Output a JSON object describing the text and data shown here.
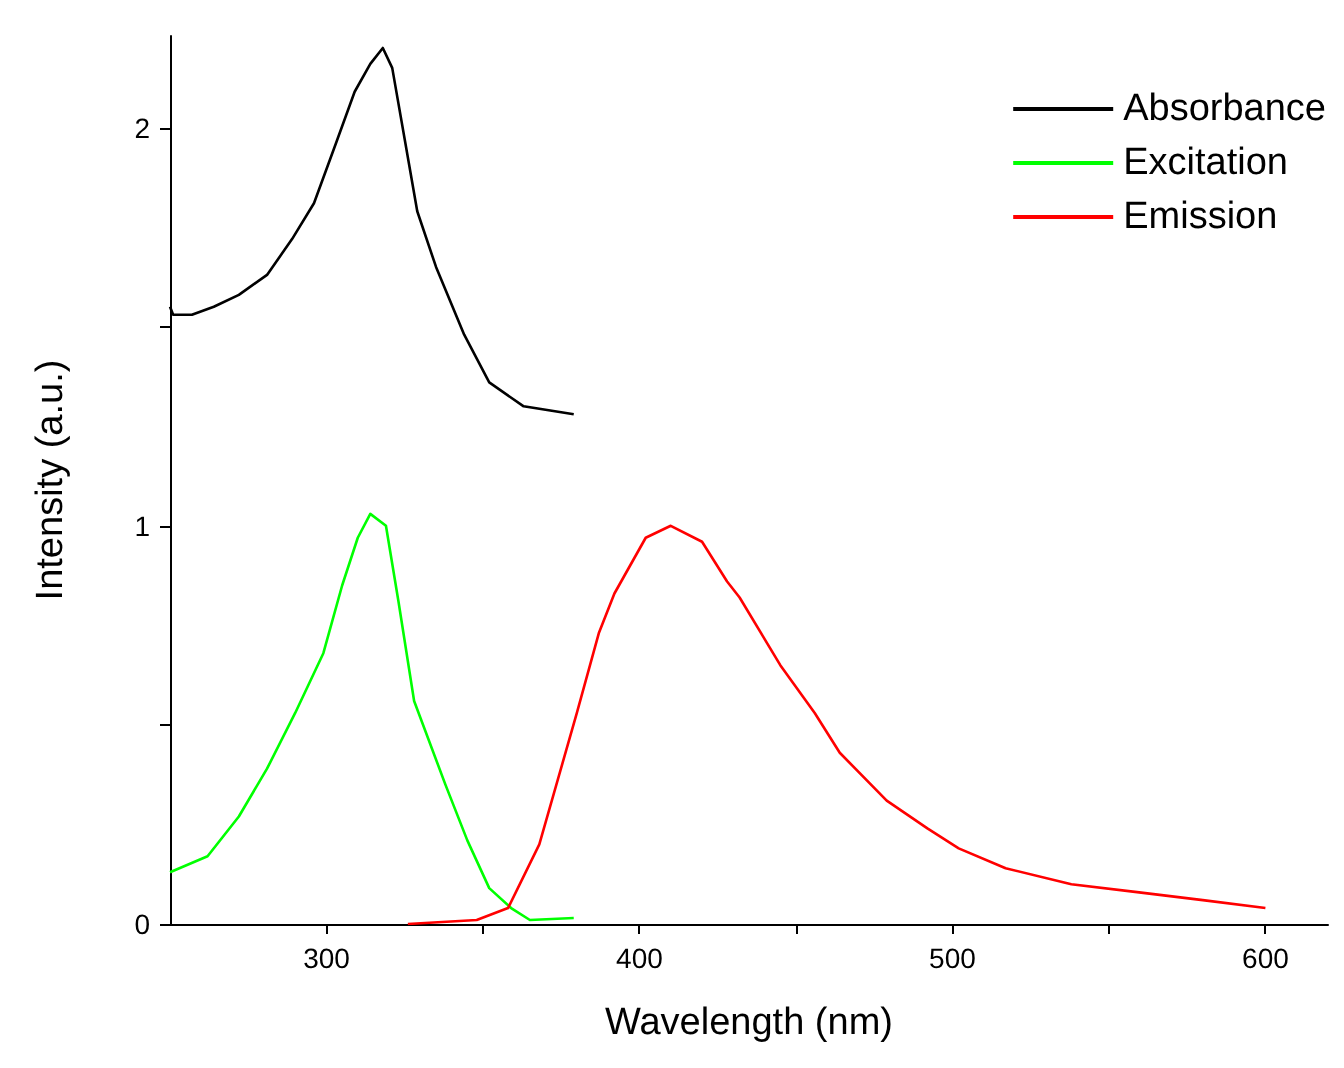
{
  "chart_data": {
    "type": "line",
    "xlabel": "Wavelength (nm)",
    "ylabel": "Intensity (a.u.)",
    "xlim": [
      250,
      620
    ],
    "xticks": [
      300,
      {
        "value": 350,
        "label": null
      },
      400,
      {
        "value": 450,
        "label": null
      },
      500,
      {
        "value": 550,
        "label": null
      },
      600
    ],
    "ylim": [
      0,
      2.23
    ],
    "yticks": [
      0,
      {
        "value": 0.5,
        "label": null
      },
      1,
      {
        "value": 1.5,
        "label": null
      },
      2
    ],
    "grid": false,
    "legend": "top right",
    "marker": "none",
    "line_style": "solid",
    "series": [
      {
        "name": "Absorbance",
        "color": "#000000",
        "x": [
          250,
          251,
          257,
          264,
          272,
          281,
          289,
          296,
          303,
          309,
          314,
          318,
          321,
          325,
          329,
          335,
          344,
          352,
          363,
          371,
          379
        ],
        "values": [
          1.55,
          1.53,
          1.53,
          1.55,
          1.58,
          1.63,
          1.72,
          1.81,
          1.96,
          2.09,
          2.16,
          2.2,
          2.15,
          1.97,
          1.79,
          1.65,
          1.48,
          1.36,
          1.3,
          1.29,
          1.28
        ]
      },
      {
        "name": "Excitation",
        "color": "#00ff00",
        "x": [
          250,
          262,
          272,
          281,
          290,
          299,
          305,
          310,
          314,
          319,
          323,
          328,
          338,
          345,
          352,
          359,
          365,
          379
        ],
        "values": [
          0.13,
          0.17,
          0.27,
          0.39,
          0.53,
          0.68,
          0.85,
          0.97,
          1.03,
          1.0,
          0.81,
          0.56,
          0.35,
          0.21,
          0.09,
          0.04,
          0.01,
          0.015
        ]
      },
      {
        "name": "Emission",
        "color": "#ff0000",
        "x": [
          326,
          348,
          358,
          368,
          380,
          387,
          392,
          402,
          410,
          420,
          428,
          432,
          445,
          456,
          464,
          479,
          492,
          502,
          517,
          538,
          559,
          580,
          600
        ],
        "values": [
          0,
          0.01,
          0.04,
          0.2,
          0.53,
          0.73,
          0.83,
          0.97,
          1.0,
          0.96,
          0.86,
          0.82,
          0.65,
          0.53,
          0.43,
          0.31,
          0.24,
          0.19,
          0.14,
          0.1,
          0.08,
          0.06,
          0.04
        ]
      }
    ]
  }
}
